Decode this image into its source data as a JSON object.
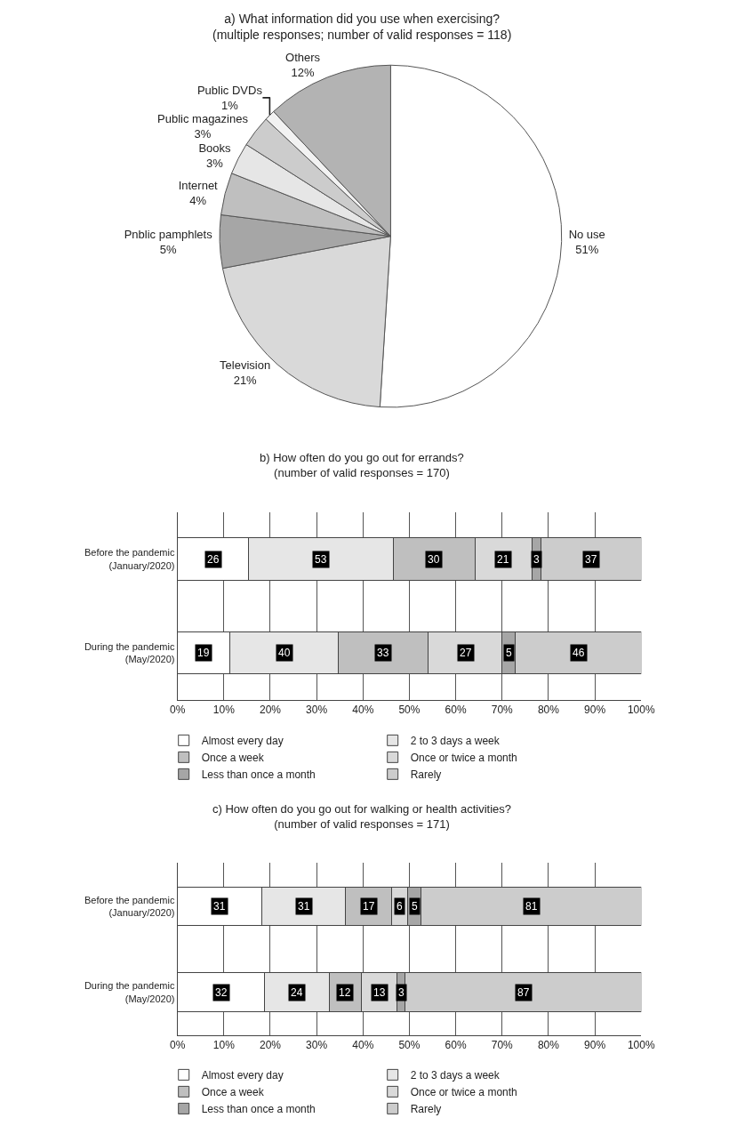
{
  "chart_data": [
    {
      "type": "pie",
      "title": "a) What information did you use when exercising?\n(multiple responses; number of valid responses = 118)",
      "categories": [
        "No use",
        "Television",
        "Pnblic pamphlets",
        "Internet",
        "Books",
        "Public magazines",
        "Public DVDs",
        "Others"
      ],
      "values": [
        51,
        21,
        5,
        4,
        3,
        3,
        1,
        12
      ],
      "value_labels": [
        "51%",
        "21%",
        "5%",
        "4%",
        "3%",
        "3%",
        "1%",
        "12%"
      ],
      "colors": [
        "#ffffff",
        "#d9d9d9",
        "#a6a6a6",
        "#bfbfbf",
        "#e6e6e6",
        "#cccccc",
        "#f2f2f2",
        "#b3b3b3"
      ],
      "legend": false
    },
    {
      "type": "bar",
      "orientation": "horizontal",
      "stacked": true,
      "grid": "x",
      "legend": "bottom",
      "title": "b) How often do you go out for errands?\n(number of valid responses = 170)",
      "categories": [
        "Before the pandemic\n(January/2020)",
        "During the pandemic\n(May/2020)"
      ],
      "xlim": [
        0,
        100
      ],
      "xticks": [
        {
          "value": 0,
          "label": "0%"
        },
        {
          "value": 10,
          "label": "10%"
        },
        {
          "value": 20,
          "label": "20%"
        },
        {
          "value": 30,
          "label": "30%"
        },
        {
          "value": 40,
          "label": "40%"
        },
        {
          "value": 50,
          "label": "50%"
        },
        {
          "value": 60,
          "label": "60%"
        },
        {
          "value": 70,
          "label": "70%"
        },
        {
          "value": 80,
          "label": "80%"
        },
        {
          "value": 90,
          "label": "90%"
        },
        {
          "value": 100,
          "label": "100%"
        }
      ],
      "series": [
        {
          "name": "Almost every day",
          "color": "#ffffff",
          "values": [
            15.3,
            11.2
          ]
        },
        {
          "name": "2 to 3 days a week",
          "color": "#e6e6e6",
          "values": [
            31.2,
            23.5
          ]
        },
        {
          "name": "Once a week",
          "color": "#bfbfbf",
          "values": [
            17.6,
            19.4
          ]
        },
        {
          "name": "Once or twice a month",
          "color": "#d9d9d9",
          "values": [
            12.4,
            15.9
          ]
        },
        {
          "name": "Less than once a month",
          "color": "#a6a6a6",
          "values": [
            1.8,
            2.9
          ]
        },
        {
          "name": "Rarely",
          "color": "#cccccc",
          "values": [
            21.7,
            27.1
          ]
        }
      ],
      "annotations": [
        {
          "text": "26",
          "x": 7.7,
          "y": "Before the pandemic\n(January/2020)"
        },
        {
          "text": "53",
          "x": 30.9,
          "y": "Before the pandemic\n(January/2020)"
        },
        {
          "text": "30",
          "x": 55.3,
          "y": "Before the pandemic\n(January/2020)"
        },
        {
          "text": "21",
          "x": 70.3,
          "y": "Before the pandemic\n(January/2020)"
        },
        {
          "text": "3",
          "x": 77.4,
          "y": "Before the pandemic\n(January/2020)"
        },
        {
          "text": "37",
          "x": 89.2,
          "y": "Before the pandemic\n(January/2020)"
        },
        {
          "text": "19",
          "x": 5.6,
          "y": "During the pandemic\n(May/2020)"
        },
        {
          "text": "40",
          "x": 23.0,
          "y": "During the pandemic\n(May/2020)"
        },
        {
          "text": "33",
          "x": 44.4,
          "y": "During the pandemic\n(May/2020)"
        },
        {
          "text": "27",
          "x": 62.1,
          "y": "During the pandemic\n(May/2020)"
        },
        {
          "text": "5",
          "x": 71.5,
          "y": "During the pandemic\n(May/2020)"
        },
        {
          "text": "46",
          "x": 86.5,
          "y": "During the pandemic\n(May/2020)"
        }
      ]
    },
    {
      "type": "bar",
      "orientation": "horizontal",
      "stacked": true,
      "grid": "x",
      "legend": "bottom",
      "title": "c) How often do you go out for walking or health activities?\n(number of valid responses = 171)",
      "categories": [
        "Before the pandemic\n(January/2020)",
        "During the pandemic\n(May/2020)"
      ],
      "xlim": [
        0,
        100
      ],
      "xticks": [
        {
          "value": 0,
          "label": "0%"
        },
        {
          "value": 10,
          "label": "10%"
        },
        {
          "value": 20,
          "label": "20%"
        },
        {
          "value": 30,
          "label": "30%"
        },
        {
          "value": 40,
          "label": "40%"
        },
        {
          "value": 50,
          "label": "50%"
        },
        {
          "value": 60,
          "label": "60%"
        },
        {
          "value": 70,
          "label": "70%"
        },
        {
          "value": 80,
          "label": "80%"
        },
        {
          "value": 90,
          "label": "90%"
        },
        {
          "value": 100,
          "label": "100%"
        }
      ],
      "series": [
        {
          "name": "Almost every day",
          "color": "#ffffff",
          "values": [
            18.1,
            18.7
          ]
        },
        {
          "name": "2 to 3 days a week",
          "color": "#e6e6e6",
          "values": [
            18.1,
            14.0
          ]
        },
        {
          "name": "Once a week",
          "color": "#bfbfbf",
          "values": [
            9.9,
            7.0
          ]
        },
        {
          "name": "Once or twice a month",
          "color": "#d9d9d9",
          "values": [
            3.5,
            7.6
          ]
        },
        {
          "name": "Less than once a month",
          "color": "#a6a6a6",
          "values": [
            2.9,
            1.8
          ]
        },
        {
          "name": "Rarely",
          "color": "#cccccc",
          "values": [
            47.5,
            50.9
          ]
        }
      ],
      "annotations": [
        {
          "text": "31",
          "x": 9.1,
          "y": "Before the pandemic\n(January/2020)"
        },
        {
          "text": "31",
          "x": 27.2,
          "y": "Before the pandemic\n(January/2020)"
        },
        {
          "text": "17",
          "x": 41.2,
          "y": "Before the pandemic\n(January/2020)"
        },
        {
          "text": "6",
          "x": 47.9,
          "y": "Before the pandemic\n(January/2020)"
        },
        {
          "text": "5",
          "x": 51.1,
          "y": "Before the pandemic\n(January/2020)"
        },
        {
          "text": "81",
          "x": 76.3,
          "y": "Before the pandemic\n(January/2020)"
        },
        {
          "text": "32",
          "x": 9.4,
          "y": "During the pandemic\n(May/2020)"
        },
        {
          "text": "24",
          "x": 25.7,
          "y": "During the pandemic\n(May/2020)"
        },
        {
          "text": "12",
          "x": 36.2,
          "y": "During the pandemic\n(May/2020)"
        },
        {
          "text": "13",
          "x": 43.5,
          "y": "During the pandemic\n(May/2020)"
        },
        {
          "text": "3",
          "x": 48.2,
          "y": "During the pandemic\n(May/2020)"
        },
        {
          "text": "87",
          "x": 74.6,
          "y": "During the pandemic\n(May/2020)"
        }
      ]
    }
  ]
}
